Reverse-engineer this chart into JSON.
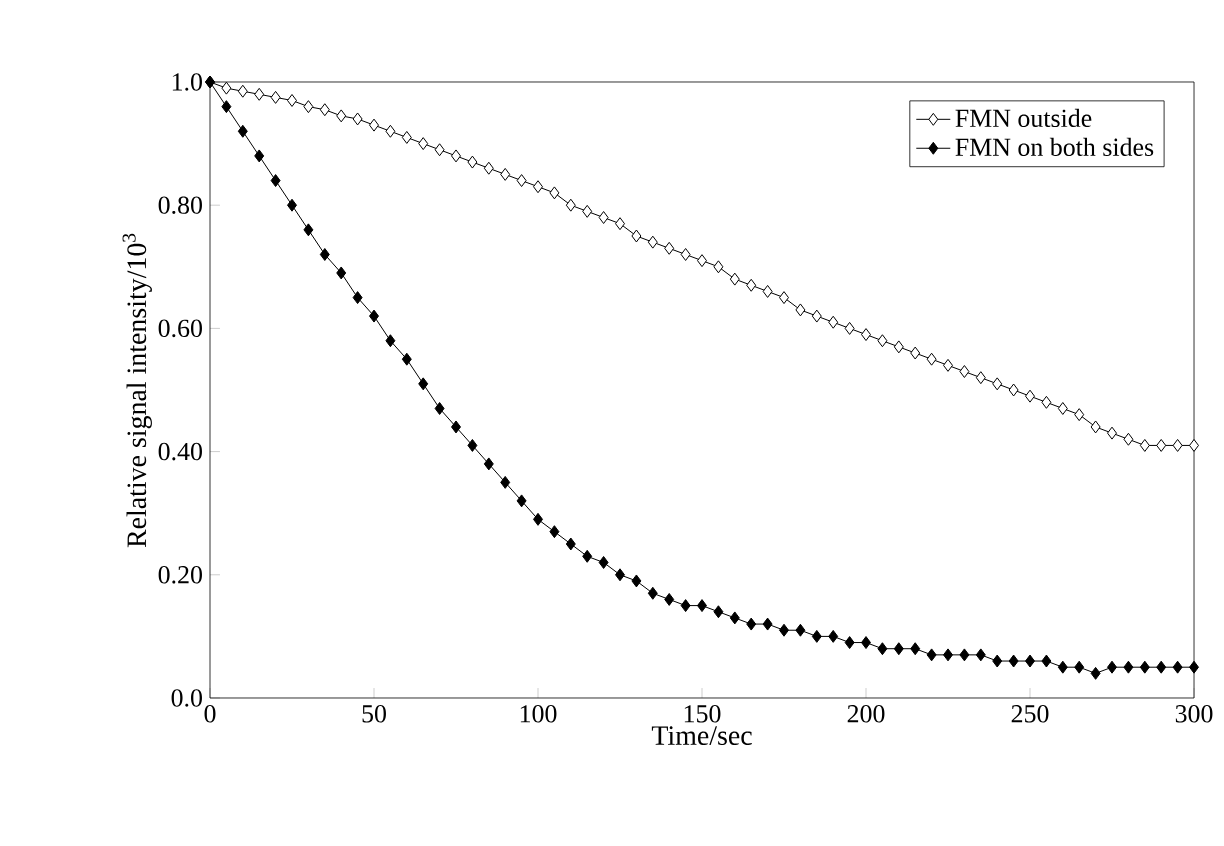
{
  "chart_data": {
    "type": "line",
    "xlabel": "Time/sec",
    "ylabel": "Relative signal intensity/10$^{3}$",
    "x": [
      0,
      5,
      10,
      15,
      20,
      25,
      30,
      35,
      40,
      45,
      50,
      55,
      60,
      65,
      70,
      75,
      80,
      85,
      90,
      95,
      100,
      105,
      110,
      115,
      120,
      125,
      130,
      135,
      140,
      145,
      150,
      155,
      160,
      165,
      170,
      175,
      180,
      185,
      190,
      195,
      200,
      205,
      210,
      215,
      220,
      225,
      230,
      235,
      240,
      245,
      250,
      255,
      260,
      265,
      270,
      275,
      280,
      285,
      290,
      295,
      300
    ],
    "series": [
      {
        "name": "FMN outside",
        "color": "#000000",
        "values": [
          1.0,
          0.99,
          0.985,
          0.98,
          0.975,
          0.97,
          0.96,
          0.955,
          0.945,
          0.94,
          0.93,
          0.92,
          0.91,
          0.9,
          0.89,
          0.88,
          0.87,
          0.86,
          0.85,
          0.84,
          0.83,
          0.82,
          0.8,
          0.79,
          0.78,
          0.77,
          0.75,
          0.74,
          0.73,
          0.72,
          0.71,
          0.7,
          0.68,
          0.67,
          0.66,
          0.65,
          0.63,
          0.62,
          0.61,
          0.6,
          0.59,
          0.58,
          0.57,
          0.56,
          0.55,
          0.54,
          0.53,
          0.52,
          0.51,
          0.5,
          0.49,
          0.48,
          0.47,
          0.46,
          0.44,
          0.43,
          0.42,
          0.41,
          0.41,
          0.41,
          0.41
        ]
      },
      {
        "name": "FMN on both sides",
        "color": "#000000",
        "values": [
          1.0,
          0.96,
          0.92,
          0.88,
          0.84,
          0.8,
          0.76,
          0.72,
          0.69,
          0.65,
          0.62,
          0.58,
          0.55,
          0.51,
          0.47,
          0.44,
          0.41,
          0.38,
          0.35,
          0.32,
          0.29,
          0.27,
          0.25,
          0.23,
          0.22,
          0.2,
          0.19,
          0.17,
          0.16,
          0.15,
          0.15,
          0.14,
          0.13,
          0.12,
          0.12,
          0.11,
          0.11,
          0.1,
          0.1,
          0.09,
          0.09,
          0.08,
          0.08,
          0.08,
          0.07,
          0.07,
          0.07,
          0.07,
          0.06,
          0.06,
          0.06,
          0.06,
          0.05,
          0.05,
          0.04,
          0.05,
          0.05,
          0.05,
          0.05,
          0.05,
          0.05
        ]
      }
    ],
    "xlim": [
      0,
      300
    ],
    "ylim": [
      0,
      1.0
    ],
    "xticks": [
      0,
      50,
      100,
      150,
      200,
      250,
      300
    ],
    "yticks": [
      {
        "value": 0,
        "label": "0.0"
      },
      {
        "value": 0.2,
        "label": "0.20"
      },
      {
        "value": 0.4,
        "label": "0.40"
      },
      {
        "value": 0.6,
        "label": "0.60"
      },
      {
        "value": 0.8,
        "label": "0.80"
      },
      {
        "value": 1.0,
        "label": "1.0"
      }
    ],
    "marker": "diamond",
    "line_style": "solid",
    "legend": "top right",
    "grid": false
  }
}
